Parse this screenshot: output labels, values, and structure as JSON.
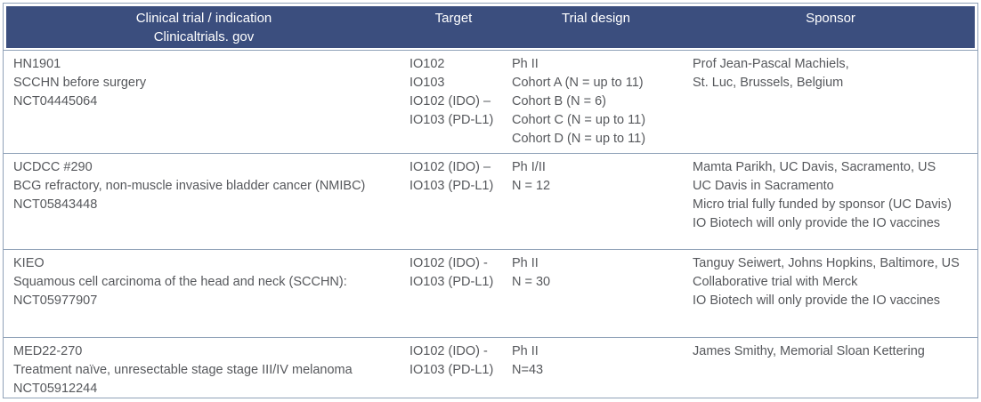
{
  "header": {
    "col1_line1": "Clinical trial / indication",
    "col1_line2": "Clinicaltrials. gov",
    "col2": "Target",
    "col3": "Trial design",
    "col4": "Sponsor"
  },
  "rows": [
    {
      "trial": "HN1901\nSCCHN before surgery\nNCT04445064",
      "target": "IO102\nIO103\nIO102 (IDO) –\nIO103 (PD-L1)",
      "design": "Ph II\nCohort A (N = up to 11)\nCohort B (N = 6)\nCohort C (N = up to 11)\nCohort D (N = up to 11)",
      "sponsor": "Prof Jean-Pascal Machiels,\nSt. Luc, Brussels, Belgium"
    },
    {
      "trial": "UCDCC #290\nBCG refractory, non-muscle invasive bladder cancer (NMIBC)\nNCT05843448",
      "target": "IO102 (IDO) –\nIO103 (PD-L1)",
      "design": "Ph I/II\nN = 12",
      "sponsor": "Mamta Parikh, UC Davis, Sacramento, US\nUC Davis in Sacramento\nMicro trial fully funded by sponsor (UC Davis)\nIO Biotech will only provide the IO vaccines"
    },
    {
      "trial": "KIEO\nSquamous cell carcinoma of the head and neck (SCCHN):\nNCT05977907",
      "target": "IO102 (IDO) -\nIO103 (PD-L1)",
      "design": "Ph II\nN = 30",
      "sponsor": "Tanguy Seiwert, Johns Hopkins, Baltimore, US\nCollaborative trial with Merck\nIO Biotech will only provide the IO vaccines"
    },
    {
      "trial": "MED22-270\nTreatment naïve, unresectable stage stage III/IV melanoma\nNCT05912244",
      "target": "IO102 (IDO) -\nIO103 (PD-L1)",
      "design": "Ph II\nN=43",
      "sponsor": "James Smithy, Memorial Sloan Kettering"
    }
  ],
  "colors": {
    "header_bg": "#3b4e7e",
    "header_text": "#ffffff",
    "body_text": "#56585c",
    "border": "#90a2b8",
    "divider": "#90a2b8"
  }
}
